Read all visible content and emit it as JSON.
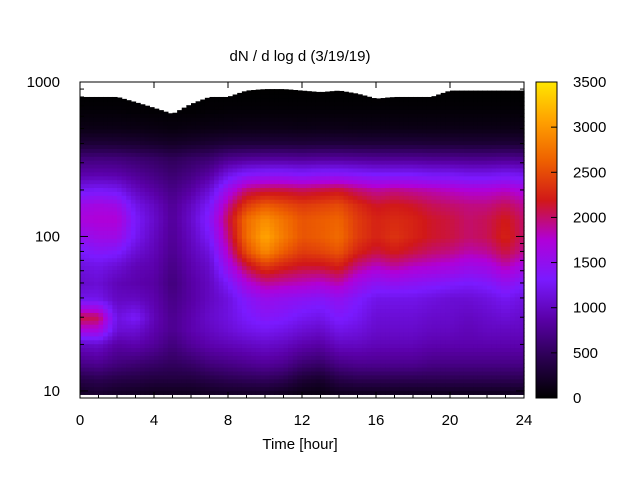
{
  "chart_data": {
    "type": "heatmap",
    "title": "dN / d log d (3/19/19)",
    "xlabel": "Time [hour]",
    "ylabel": "",
    "x_range": [
      0,
      24
    ],
    "x_ticks": [
      0,
      4,
      8,
      12,
      16,
      20,
      24
    ],
    "y_scale": "log",
    "y_range": [
      9,
      1000
    ],
    "y_ticks": [
      10,
      100,
      1000
    ],
    "colorbar": {
      "range": [
        0,
        3500
      ],
      "ticks": [
        0,
        500,
        1000,
        1500,
        2000,
        2500,
        3000,
        3500
      ],
      "palette": [
        "#000000",
        "#2a0050",
        "#5a00a8",
        "#7a1aff",
        "#b000d8",
        "#d11818",
        "#ee6000",
        "#ffa000",
        "#ffe600"
      ]
    },
    "time_hours": [
      0,
      1,
      2,
      3,
      4,
      5,
      6,
      7,
      8,
      9,
      10,
      11,
      12,
      13,
      14,
      15,
      16,
      17,
      18,
      19,
      20,
      21,
      22,
      23,
      24
    ],
    "upper_size_limit": [
      800,
      800,
      800,
      740,
      680,
      620,
      720,
      800,
      800,
      880,
      900,
      900,
      880,
      860,
      880,
      840,
      780,
      800,
      800,
      800,
      880,
      880,
      880,
      880,
      880
    ],
    "size_bins_nm": [
      9.5,
      12,
      15,
      20,
      25,
      30,
      40,
      50,
      65,
      80,
      100,
      130,
      160,
      200,
      250,
      320,
      400,
      500,
      650,
      800,
      1000
    ],
    "values": [
      [
        200,
        400,
        700,
        1000,
        1700,
        2100,
        1200,
        1050,
        1150,
        1300,
        1500,
        1700,
        1600,
        1250,
        900,
        650,
        300,
        120,
        40,
        10,
        0
      ],
      [
        250,
        450,
        750,
        1050,
        1700,
        2050,
        1200,
        1100,
        1200,
        1400,
        1600,
        1750,
        1650,
        1300,
        920,
        660,
        310,
        120,
        40,
        10,
        0
      ],
      [
        200,
        400,
        650,
        850,
        1100,
        1150,
        1000,
        950,
        1100,
        1350,
        1600,
        1750,
        1600,
        1250,
        900,
        650,
        300,
        120,
        40,
        10,
        0
      ],
      [
        180,
        380,
        600,
        900,
        1100,
        1300,
        1000,
        900,
        950,
        1100,
        1250,
        1300,
        1200,
        1000,
        800,
        600,
        280,
        110,
        30,
        0,
        0
      ],
      [
        150,
        350,
        550,
        800,
        900,
        950,
        900,
        850,
        900,
        950,
        1000,
        1050,
        1000,
        850,
        700,
        550,
        250,
        100,
        20,
        0,
        0
      ],
      [
        150,
        350,
        500,
        650,
        750,
        750,
        700,
        650,
        700,
        750,
        780,
        800,
        780,
        700,
        600,
        480,
        220,
        80,
        20,
        0,
        0
      ],
      [
        150,
        350,
        550,
        800,
        900,
        900,
        850,
        850,
        900,
        950,
        1000,
        1050,
        1000,
        850,
        700,
        550,
        250,
        100,
        20,
        0,
        0
      ],
      [
        180,
        400,
        650,
        900,
        1000,
        1050,
        1000,
        1000,
        1050,
        1150,
        1300,
        1400,
        1300,
        1100,
        850,
        600,
        280,
        110,
        30,
        10,
        0
      ],
      [
        200,
        450,
        700,
        950,
        1100,
        1150,
        1150,
        1300,
        1600,
        1800,
        1950,
        2050,
        1900,
        1600,
        1200,
        750,
        320,
        120,
        40,
        10,
        0
      ],
      [
        200,
        480,
        750,
        1000,
        1200,
        1300,
        1400,
        1700,
        2100,
        2500,
        2700,
        2700,
        2400,
        2000,
        1400,
        800,
        330,
        130,
        40,
        10,
        0
      ],
      [
        200,
        500,
        800,
        1050,
        1250,
        1400,
        1550,
        1900,
        2400,
        2900,
        3100,
        2950,
        2600,
        2100,
        1450,
        820,
        330,
        130,
        40,
        10,
        0
      ],
      [
        150,
        450,
        750,
        1000,
        1200,
        1350,
        1500,
        1850,
        2250,
        2600,
        2800,
        2750,
        2500,
        2100,
        1450,
        820,
        330,
        130,
        40,
        10,
        0
      ],
      [
        100,
        300,
        600,
        900,
        1100,
        1250,
        1450,
        1800,
        2150,
        2400,
        2550,
        2550,
        2400,
        2050,
        1400,
        800,
        320,
        120,
        40,
        10,
        0
      ],
      [
        80,
        250,
        550,
        850,
        1050,
        1200,
        1400,
        1750,
        2150,
        2450,
        2600,
        2600,
        2450,
        2100,
        1450,
        820,
        330,
        130,
        40,
        10,
        0
      ],
      [
        150,
        400,
        700,
        1000,
        1200,
        1350,
        1500,
        1850,
        2250,
        2550,
        2700,
        2650,
        2500,
        2150,
        1450,
        820,
        330,
        130,
        40,
        10,
        0
      ],
      [
        150,
        450,
        750,
        1000,
        1150,
        1250,
        1350,
        1600,
        1950,
        2250,
        2400,
        2400,
        2300,
        2000,
        1400,
        800,
        320,
        120,
        40,
        10,
        0
      ],
      [
        150,
        450,
        750,
        950,
        1050,
        1100,
        1200,
        1450,
        1800,
        2100,
        2250,
        2250,
        2150,
        1900,
        1350,
        780,
        320,
        120,
        40,
        10,
        0
      ],
      [
        150,
        450,
        750,
        950,
        1050,
        1100,
        1200,
        1500,
        1900,
        2200,
        2350,
        2300,
        2200,
        1950,
        1350,
        780,
        320,
        120,
        40,
        10,
        0
      ],
      [
        150,
        450,
        750,
        950,
        1050,
        1100,
        1200,
        1450,
        1800,
        2100,
        2250,
        2250,
        2150,
        1900,
        1350,
        780,
        320,
        120,
        40,
        10,
        0
      ],
      [
        150,
        450,
        700,
        900,
        1000,
        1050,
        1150,
        1400,
        1750,
        2000,
        2150,
        2150,
        2050,
        1850,
        1300,
        760,
        310,
        120,
        40,
        10,
        0
      ],
      [
        150,
        450,
        700,
        900,
        1000,
        1050,
        1100,
        1350,
        1700,
        1950,
        2100,
        2100,
        2000,
        1800,
        1300,
        760,
        310,
        120,
        40,
        10,
        0
      ],
      [
        150,
        450,
        700,
        900,
        950,
        1000,
        1100,
        1300,
        1600,
        1850,
        2000,
        2000,
        1950,
        1750,
        1250,
        740,
        300,
        120,
        40,
        10,
        0
      ],
      [
        150,
        450,
        700,
        900,
        1000,
        1050,
        1150,
        1350,
        1650,
        1900,
        2050,
        2050,
        1950,
        1750,
        1250,
        740,
        300,
        120,
        40,
        10,
        0
      ],
      [
        150,
        450,
        700,
        900,
        1000,
        1100,
        1250,
        1500,
        1850,
        2100,
        2250,
        2200,
        2050,
        1800,
        1300,
        760,
        310,
        120,
        40,
        10,
        0
      ],
      [
        150,
        450,
        700,
        900,
        1000,
        1050,
        1150,
        1350,
        1650,
        1900,
        2000,
        2000,
        1900,
        1700,
        1250,
        740,
        300,
        120,
        40,
        10,
        0
      ]
    ]
  }
}
